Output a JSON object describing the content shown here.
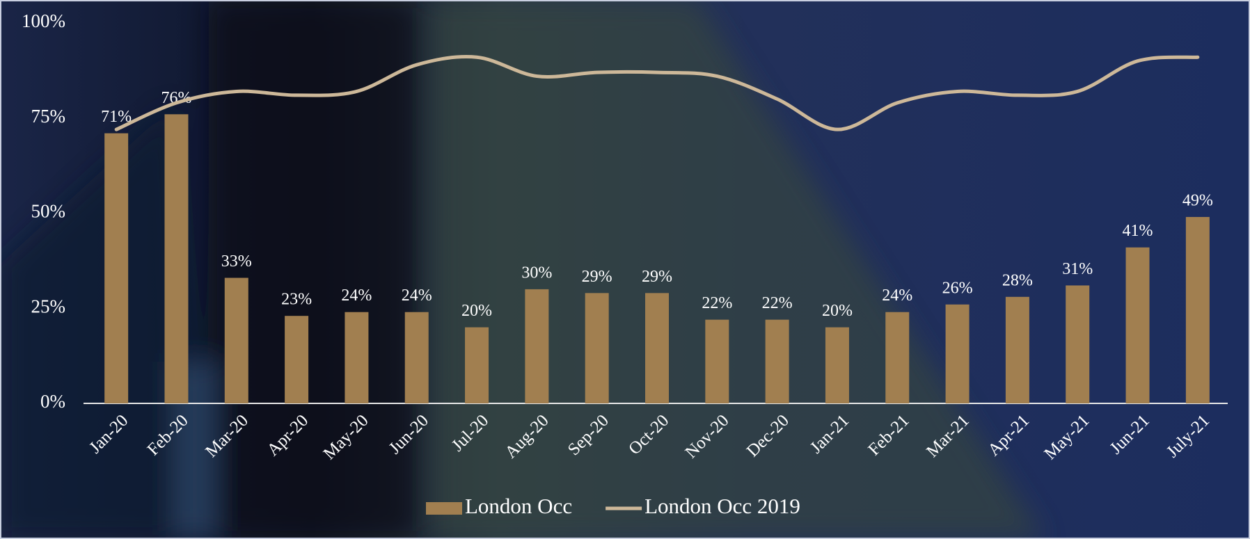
{
  "chart_data": {
    "type": "bar-line",
    "categories": [
      "Jan-20",
      "Feb-20",
      "Mar-20",
      "Apr-20",
      "May-20",
      "Jun-20",
      "Jul-20",
      "Aug-20",
      "Sep-20",
      "Oct-20",
      "Nov-20",
      "Dec-20",
      "Jan-21",
      "Feb-21",
      "Mar-21",
      "Apr-21",
      "May-21",
      "Jun-21",
      "July-21"
    ],
    "series": [
      {
        "name": "London Occ",
        "type": "bar",
        "color": "#a17f50",
        "values": [
          71,
          76,
          33,
          23,
          24,
          24,
          20,
          30,
          29,
          29,
          22,
          22,
          20,
          24,
          26,
          28,
          31,
          41,
          49
        ],
        "value_labels": [
          "71%",
          "76%",
          "33%",
          "23%",
          "24%",
          "24%",
          "20%",
          "30%",
          "29%",
          "29%",
          "22%",
          "22%",
          "20%",
          "24%",
          "26%",
          "28%",
          "31%",
          "41%",
          "49%"
        ]
      },
      {
        "name": "London Occ 2019",
        "type": "line",
        "color": "#cdb899",
        "values": [
          72,
          79,
          82,
          81,
          82,
          89,
          91,
          86,
          87,
          87,
          86,
          80,
          72,
          79,
          82,
          81,
          82,
          90,
          91
        ]
      }
    ],
    "ylim": [
      0,
      100
    ],
    "yticks": [
      {
        "value": 0,
        "label": "0%"
      },
      {
        "value": 25,
        "label": "25%"
      },
      {
        "value": 50,
        "label": "50%"
      },
      {
        "value": 75,
        "label": "75%"
      },
      {
        "value": 100,
        "label": "100%"
      }
    ],
    "legend": "bottom"
  }
}
